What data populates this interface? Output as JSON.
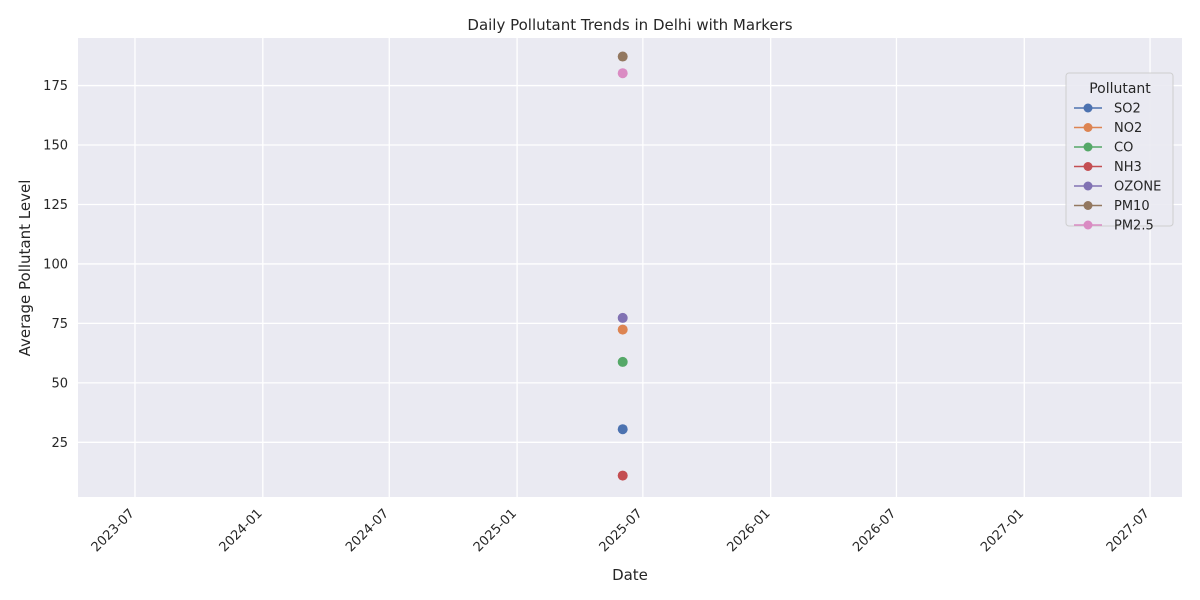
{
  "chart_data": {
    "type": "line",
    "title": "Daily Pollutant Trends in Delhi with Markers",
    "xlabel": "Date",
    "ylabel": "Average Pollutant Level",
    "x_ticks": [
      "2023-07",
      "2024-01",
      "2024-07",
      "2025-01",
      "2025-07",
      "2026-01",
      "2026-07",
      "2027-01",
      "2027-07"
    ],
    "y_ticks": [
      25,
      50,
      75,
      100,
      125,
      150,
      175
    ],
    "ylim": [
      2,
      195
    ],
    "grid": true,
    "legend": {
      "title": "Pollutant",
      "placement": "top-right"
    },
    "x": [
      "2025-06-02"
    ],
    "series": [
      {
        "name": "SO2",
        "values": [
          30.5
        ],
        "color": "#4c72b0"
      },
      {
        "name": "NO2",
        "values": [
          72.4
        ],
        "color": "#dd8452"
      },
      {
        "name": "CO",
        "values": [
          58.8
        ],
        "color": "#55a868"
      },
      {
        "name": "NH3",
        "values": [
          11.0
        ],
        "color": "#c44e52"
      },
      {
        "name": "OZONE",
        "values": [
          77.3
        ],
        "color": "#8172b3"
      },
      {
        "name": "PM10",
        "values": [
          187.2
        ],
        "color": "#937860"
      },
      {
        "name": "PM2.5",
        "values": [
          180.2
        ],
        "color": "#da8bc3"
      }
    ]
  }
}
